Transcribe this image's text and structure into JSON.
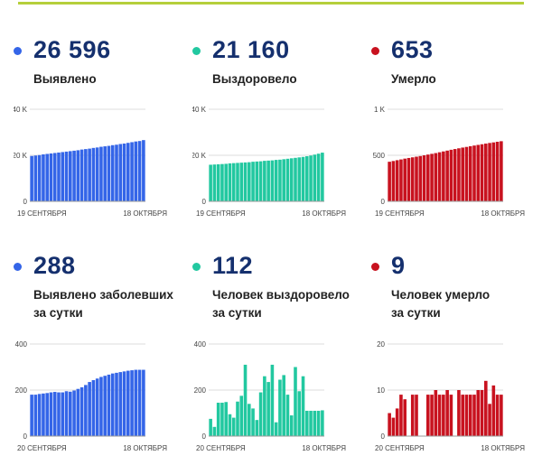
{
  "colors": {
    "blue": "#3465e8",
    "teal": "#22c8a0",
    "red": "#c8121f",
    "accent_line": "#b5cf3b",
    "number": "#15306e"
  },
  "chart_data": [
    {
      "type": "bar",
      "value_text": "26 596",
      "label_lines": [
        "Выявлено"
      ],
      "color": "#3465e8",
      "ylim": [
        0,
        40000
      ],
      "yticks": [
        0,
        20000,
        40000
      ],
      "ytick_labels": [
        "0",
        "20 K",
        "40 K"
      ],
      "x_start_label": "19 СЕНТЯБРЯ",
      "x_end_label": "18 ОКТЯБРЯ",
      "grid": true,
      "values": [
        19700,
        19900,
        20100,
        20400,
        20600,
        20800,
        21000,
        21200,
        21400,
        21600,
        21800,
        22000,
        22200,
        22500,
        22700,
        22900,
        23200,
        23400,
        23700,
        23900,
        24100,
        24400,
        24600,
        24900,
        25100,
        25400,
        25700,
        26000,
        26200,
        26600
      ]
    },
    {
      "type": "bar",
      "value_text": "21 160",
      "label_lines": [
        "Выздоровело"
      ],
      "color": "#22c8a0",
      "ylim": [
        0,
        40000
      ],
      "yticks": [
        0,
        20000,
        40000
      ],
      "ytick_labels": [
        "0",
        "20 K",
        "40 K"
      ],
      "x_start_label": "19 СЕНТЯБРЯ",
      "x_end_label": "18 ОКТЯБРЯ",
      "grid": true,
      "values": [
        15900,
        16000,
        16100,
        16200,
        16300,
        16500,
        16600,
        16700,
        16800,
        16900,
        17000,
        17200,
        17300,
        17400,
        17600,
        17700,
        17800,
        18000,
        18100,
        18300,
        18500,
        18700,
        18900,
        19100,
        19300,
        19600,
        19900,
        20300,
        20700,
        21160
      ]
    },
    {
      "type": "bar",
      "value_text": "653",
      "label_lines": [
        "Умерло"
      ],
      "color": "#c8121f",
      "ylim": [
        0,
        1000
      ],
      "yticks": [
        0,
        500,
        1000
      ],
      "ytick_labels": [
        "0",
        "500",
        "1 K"
      ],
      "x_start_label": "19 СЕНТЯБРЯ",
      "x_end_label": "18 ОКТЯБРЯ",
      "grid": true,
      "values": [
        430,
        438,
        447,
        455,
        464,
        471,
        478,
        485,
        492,
        500,
        508,
        516,
        524,
        533,
        542,
        551,
        560,
        568,
        576,
        584,
        591,
        599,
        606,
        613,
        620,
        627,
        634,
        640,
        647,
        653
      ]
    },
    {
      "type": "bar",
      "value_text": "288",
      "label_lines": [
        "Выявлено заболевших",
        "за сутки"
      ],
      "color": "#3465e8",
      "ylim": [
        0,
        400
      ],
      "yticks": [
        0,
        200,
        400
      ],
      "ytick_labels": [
        "0",
        "200",
        "400"
      ],
      "x_start_label": "20 СЕНТЯБРЯ",
      "x_end_label": "18 ОКТЯБРЯ",
      "grid": true,
      "values": [
        180,
        180,
        183,
        185,
        187,
        190,
        192,
        190,
        190,
        195,
        193,
        198,
        205,
        212,
        222,
        235,
        243,
        250,
        257,
        262,
        267,
        272,
        275,
        278,
        281,
        284,
        286,
        288,
        288,
        288
      ]
    },
    {
      "type": "bar",
      "value_text": "112",
      "label_lines": [
        "Человек выздоровело",
        "за сутки"
      ],
      "color": "#22c8a0",
      "ylim": [
        0,
        400
      ],
      "yticks": [
        0,
        200,
        400
      ],
      "ytick_labels": [
        "0",
        "200",
        "400"
      ],
      "x_start_label": "20 СЕНТЯБРЯ",
      "x_end_label": "18 ОКТЯБРЯ",
      "grid": true,
      "values": [
        75,
        40,
        145,
        145,
        148,
        95,
        80,
        150,
        175,
        310,
        140,
        120,
        70,
        190,
        260,
        235,
        310,
        60,
        245,
        265,
        180,
        90,
        300,
        195,
        260,
        110,
        110,
        110,
        110,
        112
      ]
    },
    {
      "type": "bar",
      "value_text": "9",
      "label_lines": [
        "Человек умерло",
        "за сутки"
      ],
      "color": "#c8121f",
      "ylim": [
        0,
        20
      ],
      "yticks": [
        0,
        10,
        20
      ],
      "ytick_labels": [
        "0",
        "10",
        "20"
      ],
      "x_start_label": "20 СЕНТЯБРЯ",
      "x_end_label": "18 ОКТЯБРЯ",
      "grid": true,
      "values": [
        5,
        4,
        6,
        9,
        8,
        0,
        9,
        9,
        0,
        0,
        9,
        9,
        10,
        9,
        9,
        10,
        9,
        0,
        10,
        9,
        9,
        9,
        9,
        10,
        10,
        12,
        7,
        11,
        9,
        9
      ]
    }
  ]
}
